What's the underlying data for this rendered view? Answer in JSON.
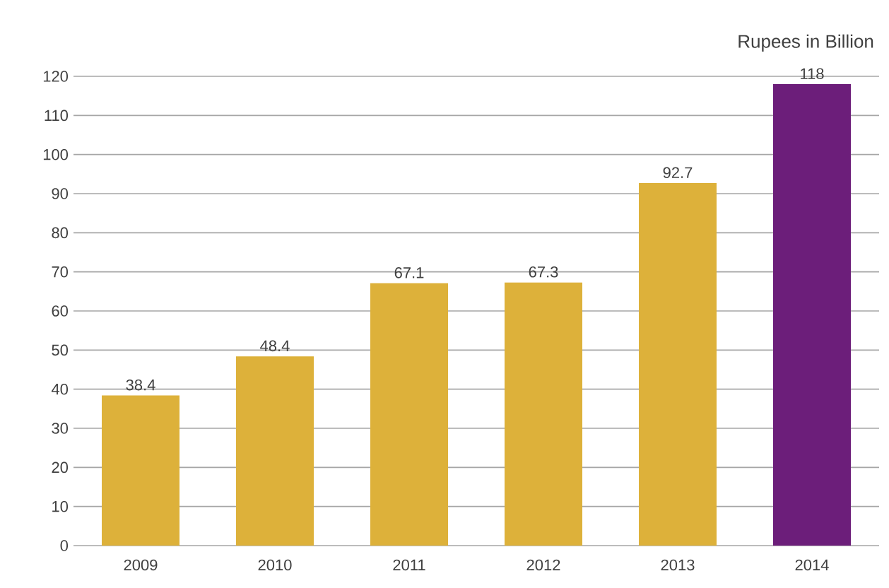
{
  "chart_data": {
    "type": "bar",
    "ylabel": "Rupees in Billion",
    "categories": [
      "2009",
      "2010",
      "2011",
      "2012",
      "2013",
      "2014"
    ],
    "values": [
      38.4,
      48.4,
      67.1,
      67.3,
      92.7,
      118
    ],
    "colors": [
      "#ddb13a",
      "#ddb13a",
      "#ddb13a",
      "#ddb13a",
      "#ddb13a",
      "#6c1e7a"
    ],
    "ylim": [
      0,
      120
    ],
    "yticks": [
      0,
      10,
      20,
      30,
      40,
      50,
      60,
      70,
      80,
      90,
      100,
      110,
      120
    ],
    "grid": "y",
    "data_labels": true
  }
}
